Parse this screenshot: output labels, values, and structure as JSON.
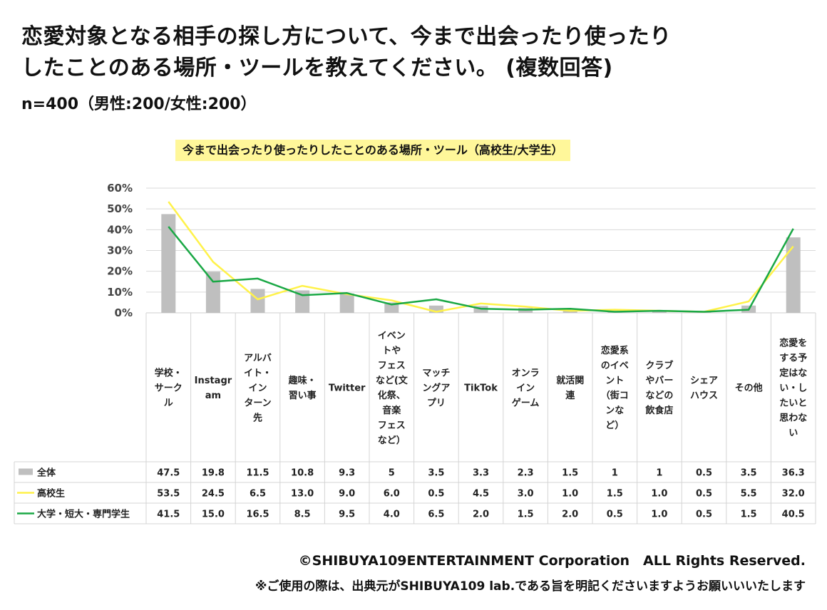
{
  "header": {
    "title_line1": "恋愛対象となる相手の探し方について、今まで出会ったり使ったり",
    "title_line2": "したことのある場所・ツールを教えてください。 (複数回答)",
    "sample": "n=400（男性:200/女性:200）"
  },
  "footer": {
    "copyright": "©SHIBUYA109ENTERTAINMENT Corporation　ALL Rights Reserved.",
    "notice": "※ご使用の際は、出典元がSHIBUYA109 lab.である旨を明記くださいますようお願いいいたします"
  },
  "chart_data": {
    "type": "bar",
    "title": "今まで出会ったり使ったりしたことのある場所・ツール（高校生/大学生）",
    "ylim": [
      0,
      60
    ],
    "yticks": [
      "0%",
      "10%",
      "20%",
      "30%",
      "40%",
      "50%",
      "60%"
    ],
    "grid": true,
    "legend": "table-left",
    "categories": [
      [
        "学校・",
        "サーク",
        "ル"
      ],
      [
        "Instagr",
        "am"
      ],
      [
        "アルバ",
        "イト・",
        "イン",
        "ターン",
        "先"
      ],
      [
        "趣味・",
        "習い事"
      ],
      [
        "Twitter"
      ],
      [
        "イベン",
        "トや",
        "フェス",
        "など(文",
        "化祭、",
        "音楽",
        "フェス",
        "など）"
      ],
      [
        "マッチ",
        "ングア",
        "プリ"
      ],
      [
        "TikTok"
      ],
      [
        "オンラ",
        "イン",
        "ゲーム"
      ],
      [
        "就活関",
        "連"
      ],
      [
        "恋愛系",
        "のイベ",
        "ント",
        "（街コ",
        "ンな",
        "ど）"
      ],
      [
        "クラブ",
        "やバー",
        "などの",
        "飲食店"
      ],
      [
        "シェア",
        "ハウス"
      ],
      [
        "その他"
      ],
      [
        "恋愛を",
        "する予",
        "定はな",
        "い・し",
        "たいと",
        "思わな",
        "い"
      ]
    ],
    "series": [
      {
        "name": "全体",
        "kind": "bar",
        "color": "#bfbfbf",
        "values": [
          47.5,
          19.8,
          11.5,
          10.8,
          9.3,
          5,
          3.5,
          3.3,
          2.3,
          1.5,
          1,
          1,
          0.5,
          3.5,
          36.3
        ],
        "labels": [
          "47.5",
          "19.8",
          "11.5",
          "10.8",
          "9.3",
          "5",
          "3.5",
          "3.3",
          "2.3",
          "1.5",
          "1",
          "1",
          "0.5",
          "3.5",
          "36.3"
        ]
      },
      {
        "name": "高校生",
        "kind": "line",
        "color": "#fff24a",
        "values": [
          53.5,
          24.5,
          6.5,
          13.0,
          9.0,
          6.0,
          0.5,
          4.5,
          3.0,
          1.0,
          1.5,
          1.0,
          0.5,
          5.5,
          32.0
        ],
        "labels": [
          "53.5",
          "24.5",
          "6.5",
          "13.0",
          "9.0",
          "6.0",
          "0.5",
          "4.5",
          "3.0",
          "1.0",
          "1.5",
          "1.0",
          "0.5",
          "5.5",
          "32.0"
        ]
      },
      {
        "name": "大学・短大・専門学生",
        "kind": "line",
        "color": "#1aa845",
        "values": [
          41.5,
          15.0,
          16.5,
          8.5,
          9.5,
          4.0,
          6.5,
          2.0,
          1.5,
          2.0,
          0.5,
          1.0,
          0.5,
          1.5,
          40.5
        ],
        "labels": [
          "41.5",
          "15.0",
          "16.5",
          "8.5",
          "9.5",
          "4.0",
          "6.5",
          "2.0",
          "1.5",
          "2.0",
          "0.5",
          "1.0",
          "0.5",
          "1.5",
          "40.5"
        ]
      }
    ]
  }
}
